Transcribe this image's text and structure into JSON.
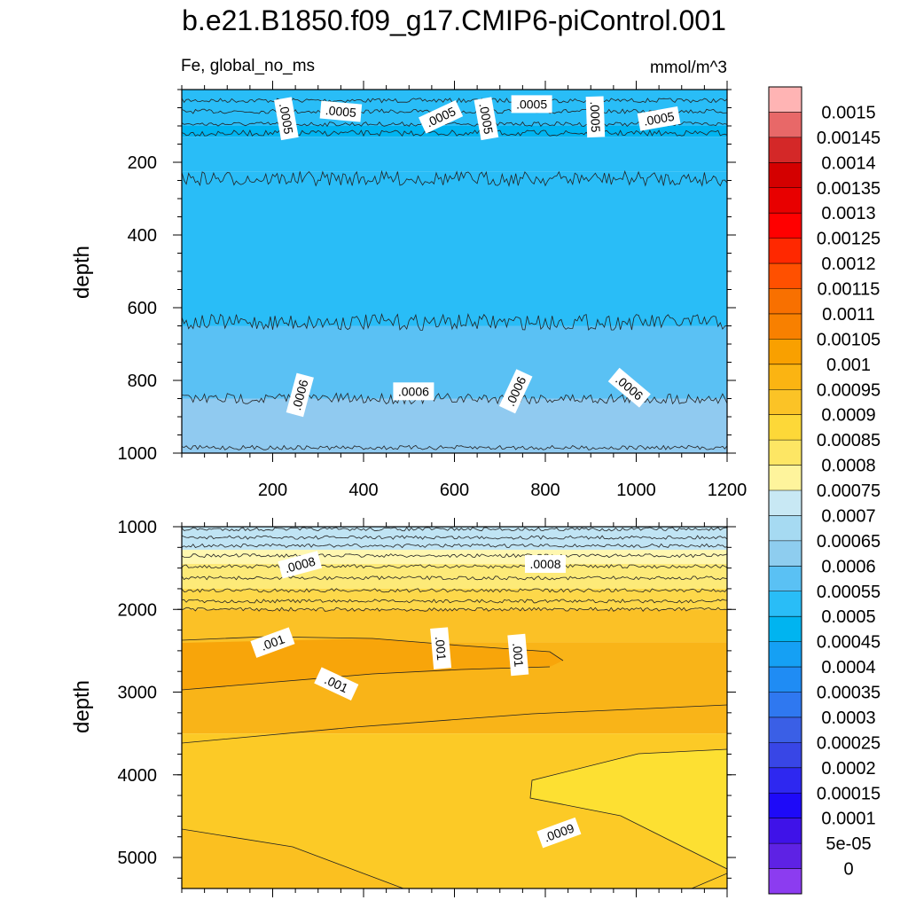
{
  "chart_data": [
    {
      "type": "heatmap",
      "subtype": "filled-contour",
      "title": "b.e21.B1850.f09_g17.CMIP6-piControl.001",
      "left_string": "Fe, global_no_ms",
      "right_string": "mmol/m^3",
      "xlabel": "",
      "ylabel": "depth",
      "xlim": [
        0,
        1200
      ],
      "ylim": [
        1000,
        0
      ],
      "x_ticks": [
        200,
        400,
        600,
        800,
        1000,
        1200
      ],
      "x_tick_labels": [
        "200",
        "400",
        "600",
        "800",
        "1000",
        "1200"
      ],
      "y_ticks": [
        200,
        400,
        600,
        800,
        1000
      ],
      "y_tick_labels": [
        "200",
        "400",
        "600",
        "800",
        "1000"
      ],
      "bands": [
        {
          "from": 0,
          "to": 100,
          "color": "#29bdf7"
        },
        {
          "from": 100,
          "to": 130,
          "color": "#00b4f0"
        },
        {
          "from": 130,
          "to": 225,
          "color": "#29bdf7"
        },
        {
          "from": 225,
          "to": 650,
          "color": "#29bdf7"
        },
        {
          "from": 650,
          "to": 850,
          "color": "#5ac1f4"
        },
        {
          "from": 850,
          "to": 1000,
          "color": "#90caf0"
        }
      ],
      "contour_lines": [
        {
          "depth": 30,
          "amp": 6
        },
        {
          "depth": 60,
          "amp": 6
        },
        {
          "depth": 95,
          "amp": 6
        },
        {
          "depth": 120,
          "amp": 8
        },
        {
          "depth": 245,
          "amp": 20
        },
        {
          "depth": 640,
          "amp": 22
        },
        {
          "depth": 850,
          "amp": 15
        },
        {
          "depth": 985,
          "amp": 6
        }
      ],
      "contour_labels": [
        {
          "text": ".0005",
          "x": 230,
          "depth": 80,
          "rotate": 80
        },
        {
          "text": ".0005",
          "x": 350,
          "depth": 60,
          "rotate": 5
        },
        {
          "text": ".0005",
          "x": 570,
          "depth": 75,
          "rotate": -25
        },
        {
          "text": ".0005",
          "x": 670,
          "depth": 80,
          "rotate": 80
        },
        {
          "text": ".0005",
          "x": 770,
          "depth": 40,
          "rotate": 0
        },
        {
          "text": ".0005",
          "x": 910,
          "depth": 75,
          "rotate": 88
        },
        {
          "text": ".0005",
          "x": 1050,
          "depth": 80,
          "rotate": -10
        },
        {
          "text": ".0006",
          "x": 260,
          "depth": 840,
          "rotate": -75
        },
        {
          "text": ".0006",
          "x": 510,
          "depth": 830,
          "rotate": 0
        },
        {
          "text": ".0006",
          "x": 735,
          "depth": 830,
          "rotate": -65
        },
        {
          "text": ".0006",
          "x": 985,
          "depth": 820,
          "rotate": 40
        }
      ]
    },
    {
      "type": "heatmap",
      "subtype": "filled-contour",
      "xlabel": "",
      "ylabel": "depth",
      "xlim": [
        0,
        1200
      ],
      "ylim": [
        5375,
        1000
      ],
      "y_ticks": [
        1000,
        2000,
        3000,
        4000,
        5000
      ],
      "y_tick_labels": [
        "1000",
        "2000",
        "3000",
        "4000",
        "5000"
      ],
      "bands": [
        {
          "from": 1000,
          "to": 1280,
          "color": "#c0e4f4"
        },
        {
          "from": 1280,
          "to": 1450,
          "color": "#fff7b0"
        },
        {
          "from": 1450,
          "to": 1750,
          "color": "#fdea78"
        },
        {
          "from": 1750,
          "to": 2000,
          "color": "#fdd84a"
        },
        {
          "from": 2000,
          "to": 2400,
          "color": "#fbc126"
        },
        {
          "from": 2400,
          "to": 3500,
          "color": "#f9b418"
        },
        {
          "from": 3500,
          "to": 5375,
          "color": "#fcca26"
        }
      ],
      "contour_lines": [
        {
          "depth": 1030,
          "amp": 5
        },
        {
          "depth": 1130,
          "amp": 5
        },
        {
          "depth": 1230,
          "amp": 5
        },
        {
          "depth": 1350,
          "amp": 5
        },
        {
          "depth": 1480,
          "amp": 5
        },
        {
          "depth": 1620,
          "amp": 5
        },
        {
          "depth": 1770,
          "amp": 5
        },
        {
          "depth": 1900,
          "amp": 5
        },
        {
          "depth": 2000,
          "amp": 5
        }
      ],
      "contour_labels": [
        {
          "text": ".0008",
          "x": 260,
          "depth": 1460,
          "rotate": -15
        },
        {
          "text": ".0008",
          "x": 800,
          "depth": 1450,
          "rotate": 0
        },
        {
          "text": ".001",
          "x": 200,
          "depth": 2400,
          "rotate": -20
        },
        {
          "text": ".001",
          "x": 570,
          "depth": 2470,
          "rotate": 85
        },
        {
          "text": ".001",
          "x": 740,
          "depth": 2550,
          "rotate": 85
        },
        {
          "text": ".001",
          "x": 340,
          "depth": 2900,
          "rotate": 25
        },
        {
          "text": ".0009",
          "x": 830,
          "depth": 4700,
          "rotate": -20
        }
      ]
    },
    {
      "type": "colorbar",
      "labels": [
        "0.0015",
        "0.00145",
        "0.0014",
        "0.00135",
        "0.0013",
        "0.00125",
        "0.0012",
        "0.00115",
        "0.0011",
        "0.00105",
        "0.001",
        "0.00095",
        "0.0009",
        "0.00085",
        "0.0008",
        "0.00075",
        "0.0007",
        "0.00065",
        "0.0006",
        "0.00055",
        "0.0005",
        "0.00045",
        "0.0004",
        "0.00035",
        "0.0003",
        "0.00025",
        "0.0002",
        "0.00015",
        "0.0001",
        "5e-05",
        "0"
      ],
      "colors": [
        "#ffb4b4",
        "#e86868",
        "#d42828",
        "#d40000",
        "#e80000",
        "#ff0000",
        "#ff2800",
        "#ff5000",
        "#f87000",
        "#f88000",
        "#f9a000",
        "#fbb412",
        "#fbc326",
        "#fdd838",
        "#fde664",
        "#fef49c",
        "#c8e8f4",
        "#a6daf2",
        "#8ecdef",
        "#5ac1f4",
        "#29bdf7",
        "#00b4f0",
        "#15a0f4",
        "#1f8cf4",
        "#2f78f0",
        "#3a5fe6",
        "#3846e6",
        "#2e28f0",
        "#1e0af8",
        "#3f12e8",
        "#5e22e4",
        "#8c3cf0"
      ]
    }
  ]
}
